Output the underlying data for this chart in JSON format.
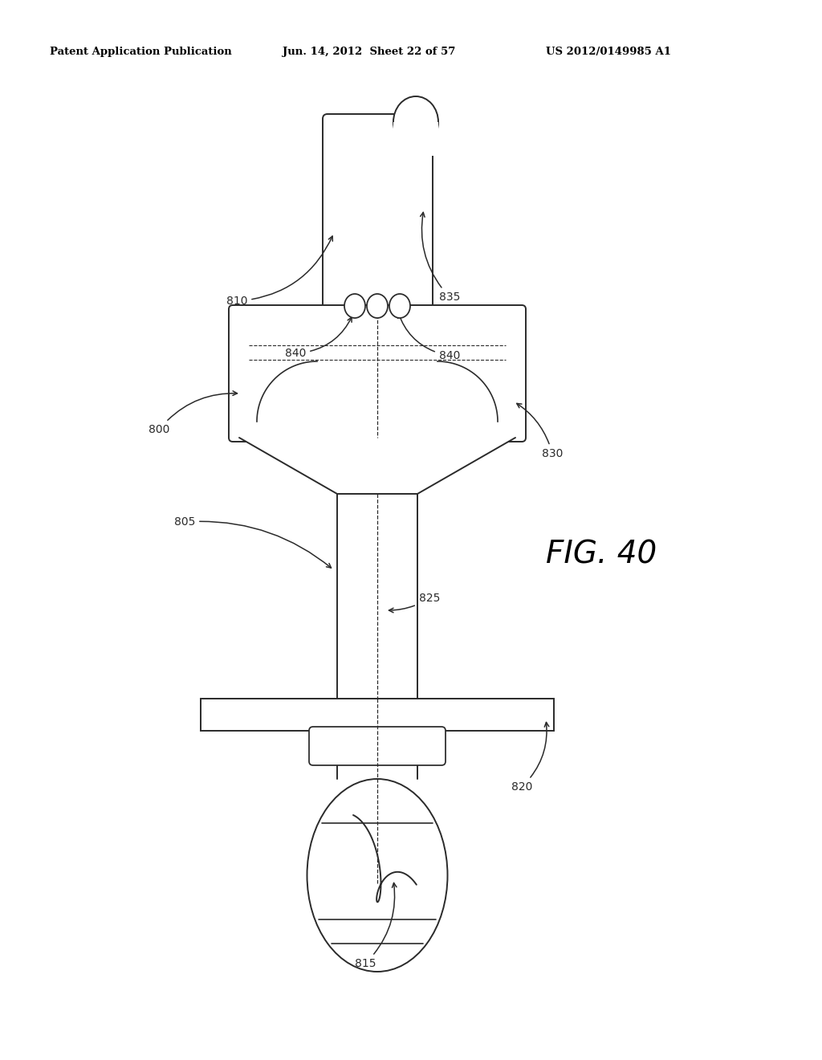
{
  "title_left": "Patent Application Publication",
  "title_mid": "Jun. 14, 2012  Sheet 22 of 57",
  "title_right": "US 2012/0149985 A1",
  "bg_color": "#ffffff",
  "line_color": "#2a2a2a",
  "lw": 1.4
}
